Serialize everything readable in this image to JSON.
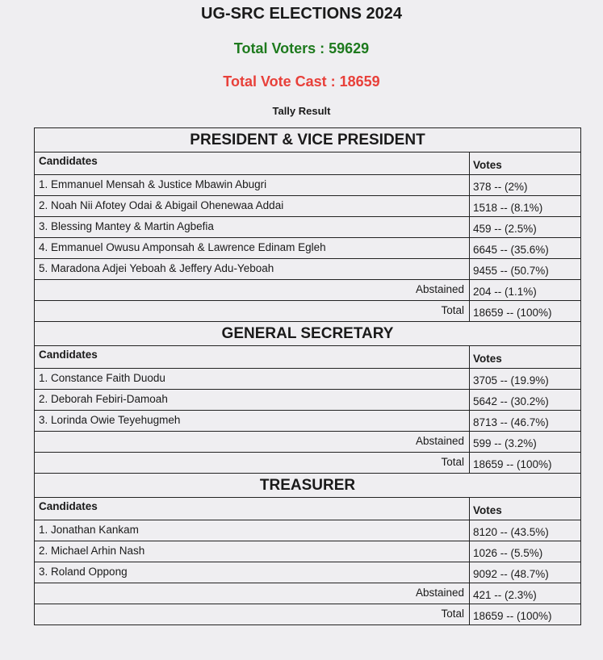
{
  "header": {
    "title": "UG-SRC ELECTIONS 2024",
    "total_voters": "Total Voters : 59629",
    "total_vote_cast": "Total Vote Cast : 18659",
    "subtitle": "Tally Result"
  },
  "colors": {
    "voters": "#1e7a1e",
    "cast": "#e8403a"
  },
  "sections": [
    {
      "title": "PRESIDENT & VICE PRESIDENT",
      "col_candidates": "Candidates",
      "col_votes": "Votes",
      "rows": [
        {
          "name": "1. Emmanuel Mensah & Justice Mbawin Abugri",
          "votes": "378 -- (2%)"
        },
        {
          "name": "2. Noah Nii Afotey Odai & Abigail Ohenewaa Addai",
          "votes": "1518 -- (8.1%)"
        },
        {
          "name": "3. Blessing Mantey & Martin Agbefia",
          "votes": "459 -- (2.5%)"
        },
        {
          "name": "4. Emmanuel Owusu Amponsah & Lawrence Edinam Egleh",
          "votes": "6645 -- (35.6%)"
        },
        {
          "name": "5. Maradona Adjei Yeboah & Jeffery Adu-Yeboah",
          "votes": "9455 -- (50.7%)"
        }
      ],
      "abstained_label": "Abstained",
      "abstained": "204 -- (1.1%)",
      "total_label": "Total",
      "total": "18659 -- (100%)"
    },
    {
      "title": "GENERAL SECRETARY",
      "col_candidates": "Candidates",
      "col_votes": "Votes",
      "rows": [
        {
          "name": "1. Constance Faith Duodu",
          "votes": "3705 -- (19.9%)"
        },
        {
          "name": "2. Deborah Febiri-Damoah",
          "votes": "5642 -- (30.2%)"
        },
        {
          "name": "3. Lorinda Owie Teyehugmeh",
          "votes": "8713 -- (46.7%)"
        }
      ],
      "abstained_label": "Abstained",
      "abstained": "599 -- (3.2%)",
      "total_label": "Total",
      "total": "18659 -- (100%)"
    },
    {
      "title": "TREASURER",
      "col_candidates": "Candidates",
      "col_votes": "Votes",
      "rows": [
        {
          "name": "1. Jonathan Kankam",
          "votes": "8120 -- (43.5%)"
        },
        {
          "name": "2. Michael Arhin Nash",
          "votes": "1026 -- (5.5%)"
        },
        {
          "name": "3. Roland Oppong",
          "votes": "9092 -- (48.7%)"
        }
      ],
      "abstained_label": "Abstained",
      "abstained": "421 -- (2.3%)",
      "total_label": "Total",
      "total": "18659 -- (100%)"
    }
  ]
}
